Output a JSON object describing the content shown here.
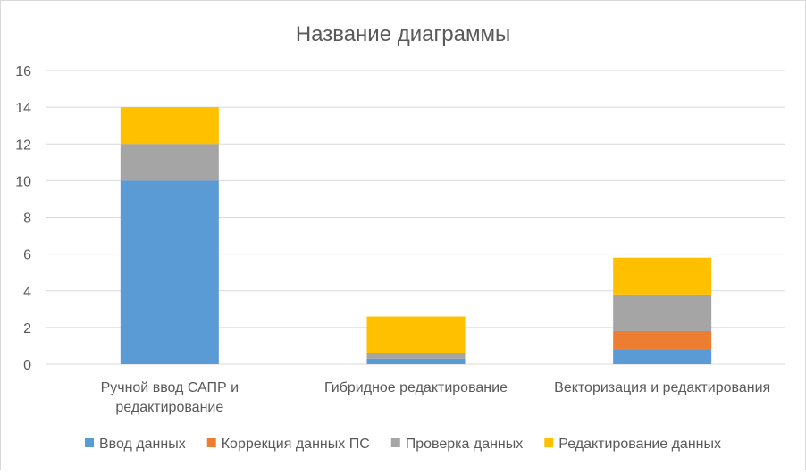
{
  "chart_data": {
    "type": "bar",
    "stacked": true,
    "title": "Название диаграммы",
    "categories": [
      [
        "Ручной ввод САПР и",
        "редактирование"
      ],
      [
        "Гибридное редактирование"
      ],
      [
        "Векторизация и редактирования"
      ]
    ],
    "series": [
      {
        "name": "Ввод данных",
        "color": "#5b9bd5",
        "values": [
          10,
          0.3,
          0.8
        ]
      },
      {
        "name": "Коррекция данных ПС",
        "color": "#ed7d31",
        "values": [
          0,
          0,
          1.0
        ]
      },
      {
        "name": "Проверка данных",
        "color": "#a5a5a5",
        "values": [
          2,
          0.3,
          2.0
        ]
      },
      {
        "name": "Редактирование данных",
        "color": "#ffc000",
        "values": [
          2,
          2.0,
          2.0
        ]
      }
    ],
    "ylim": [
      0,
      16
    ],
    "yticks": [
      0,
      2,
      4,
      6,
      8,
      10,
      12,
      14,
      16
    ],
    "grid": true,
    "legend_position": "bottom",
    "xlabel": "",
    "ylabel": ""
  }
}
